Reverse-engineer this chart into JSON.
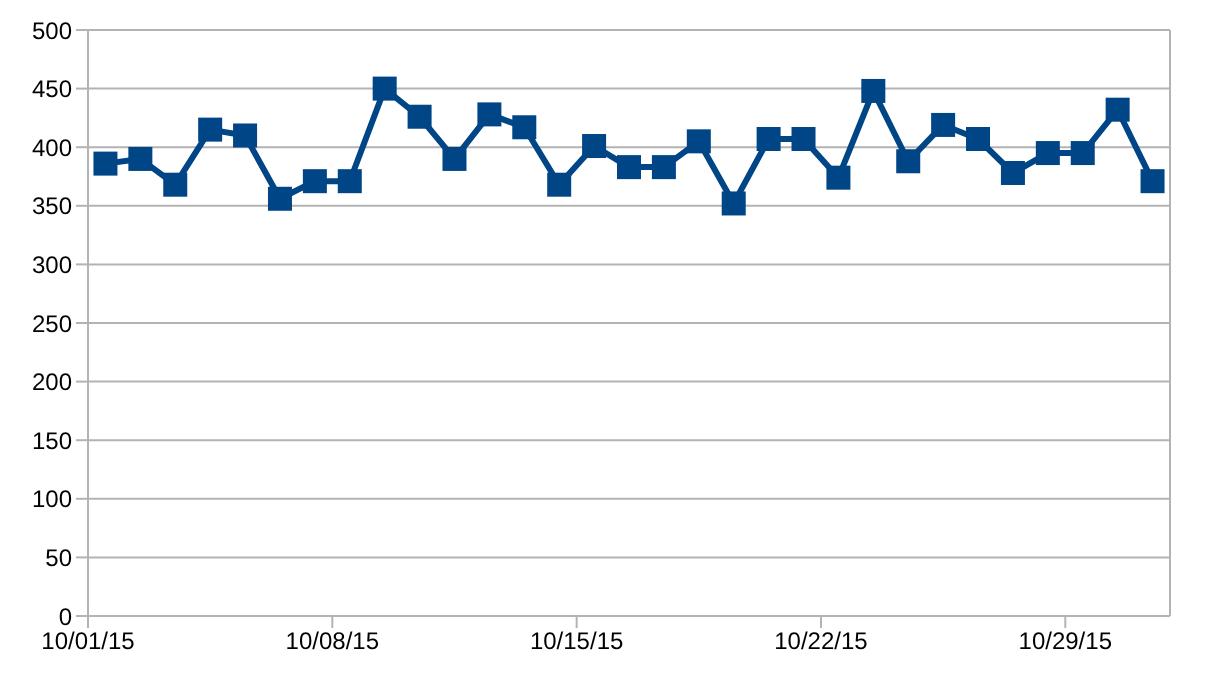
{
  "chart_data": {
    "type": "line",
    "x": [
      "--10-01T12:00",
      "--10-02T12:00",
      "--10-03T12:00",
      "--10-04T12:00",
      "--10-05T12:00",
      "--10-06T12:00",
      "--10-07T12:00",
      "--10-08T12:00",
      "--10-09T12:00",
      "--10-10T12:00",
      "--10-11T12:00",
      "--10-12T12:00",
      "--10-13T12:00",
      "--10-14T12:00",
      "--10-15T12:00",
      "--10-16T12:00",
      "--10-17T12:00",
      "--10-18T12:00",
      "--10-19T12:00",
      "--10-20T12:00",
      "--10-21T12:00",
      "--10-22T12:00",
      "--10-23T12:00",
      "--10-24T12:00",
      "--10-25T12:00",
      "--10-26T12:00",
      "--10-27T12:00",
      "--10-28T12:00",
      "--10-29T12:00",
      "--10-30T12:00",
      "--10-31T12:00"
    ],
    "series": [
      {
        "color": "#004586",
        "values": [
          386,
          390,
          368,
          415,
          410,
          356,
          371,
          371,
          450,
          426,
          390,
          428,
          417,
          368,
          401,
          383,
          383,
          405,
          352,
          407,
          407,
          374,
          448,
          388,
          419,
          407,
          378,
          395,
          395,
          432,
          371
        ]
      }
    ],
    "xlim": [
      "--10-01",
      "--11-01"
    ],
    "xticks": [
      {
        "value": "--10-01",
        "label": "10/01/15"
      },
      {
        "value": "--10-08",
        "label": "10/08/15"
      },
      {
        "value": "--10-15",
        "label": "10/15/15"
      },
      {
        "value": "--10-22",
        "label": "10/22/15"
      },
      {
        "value": "--10-29",
        "label": "10/29/15"
      }
    ],
    "ylim": [
      0,
      500
    ],
    "yticks": [
      0,
      50,
      100,
      150,
      200,
      250,
      300,
      350,
      400,
      450,
      500
    ],
    "grid": "y",
    "legend": false,
    "marker": "square",
    "line_style": "solid"
  }
}
